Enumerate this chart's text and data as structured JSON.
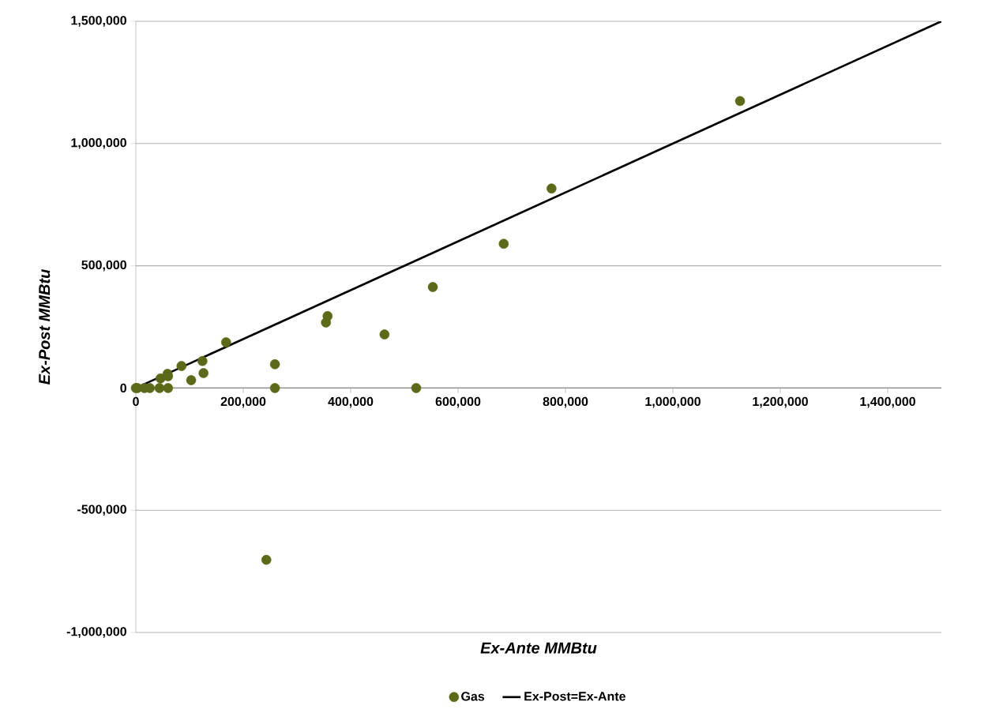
{
  "chart_data": {
    "type": "scatter",
    "xlabel": "Ex-Ante MMBtu",
    "ylabel": "Ex-Post MMBtu",
    "xlim": [
      0,
      1500000
    ],
    "ylim": [
      -1000000,
      1500000
    ],
    "xticks": [
      {
        "value": 0,
        "label": "0"
      },
      {
        "value": 200000,
        "label": "200,000"
      },
      {
        "value": 400000,
        "label": "400,000"
      },
      {
        "value": 600000,
        "label": "600,000"
      },
      {
        "value": 800000,
        "label": "800,000"
      },
      {
        "value": 1000000,
        "label": "1,000,000"
      },
      {
        "value": 1200000,
        "label": "1,200,000"
      },
      {
        "value": 1400000,
        "label": "1,400,000"
      }
    ],
    "yticks": [
      {
        "value": -1000000,
        "label": "-1,000,000"
      },
      {
        "value": -500000,
        "label": "-500,000"
      },
      {
        "value": 0,
        "label": "0"
      },
      {
        "value": 500000,
        "label": "500,000"
      },
      {
        "value": 1000000,
        "label": "1,000,000"
      },
      {
        "value": 1500000,
        "label": "1,500,000"
      }
    ],
    "grid": "y",
    "legend": "bottom",
    "marker": "circle",
    "series": [
      {
        "name": "Gas",
        "color": "#5b6a18",
        "x": [
          0,
          3000,
          16000,
          26000,
          44000,
          60000,
          46000,
          59000,
          60000,
          85000,
          103000,
          124000,
          126000,
          168000,
          259000,
          259000,
          243000,
          354000,
          357000,
          463000,
          522000,
          553000,
          685000,
          774000,
          1125000
        ],
        "values": [
          0,
          0,
          0,
          0,
          0,
          0,
          39000,
          58000,
          48000,
          90000,
          32000,
          110000,
          61000,
          187000,
          97000,
          0,
          -703000,
          268000,
          294000,
          219000,
          0,
          413000,
          590000,
          816000,
          1174000
        ]
      },
      {
        "name": "Ex-Post=Ex-Ante",
        "type": "line",
        "color": "#000000",
        "marker": "none",
        "line_style": "solid",
        "x": [
          0,
          1500000
        ],
        "values": [
          0,
          1500000
        ]
      }
    ]
  }
}
